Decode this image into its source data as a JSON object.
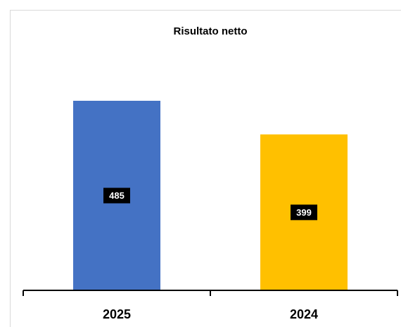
{
  "chart_data": {
    "type": "bar",
    "title": "Risultato netto",
    "categories": [
      "2025",
      "2024"
    ],
    "values": [
      485,
      399
    ],
    "colors": [
      "#4472c4",
      "#ffc000"
    ]
  }
}
